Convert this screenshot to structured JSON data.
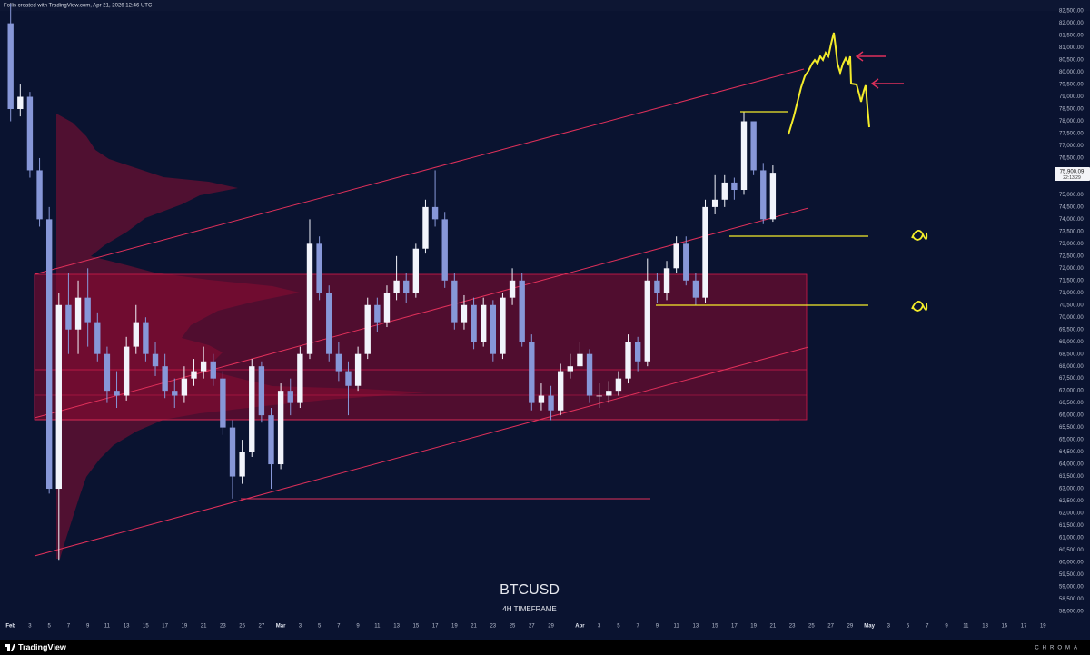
{
  "header": {
    "text": "Follis created with TradingView.com, Apr 21, 2026 12:46 UTC"
  },
  "footer": {
    "brand": "TradingView",
    "watermark": "CHROMA"
  },
  "price_tag": {
    "label": "75,900.09",
    "countdown": "22:13:29"
  },
  "chart_data": {
    "type": "candlestick",
    "title": "BTCUSD",
    "subtitle": "4H TIMEFRAME",
    "up_color": "#f2f4fb",
    "down_color": "#8797d8",
    "grid": false,
    "x": [
      0,
      1,
      2,
      3,
      4,
      5,
      6,
      7,
      8,
      9,
      10,
      11,
      12,
      13,
      14,
      15,
      16,
      17,
      18,
      19,
      20,
      21,
      22,
      23,
      24,
      25,
      26,
      27,
      28,
      29,
      30,
      31,
      32,
      33,
      34,
      35,
      36,
      37,
      38,
      39,
      40,
      41,
      42,
      43,
      44,
      45,
      46,
      47,
      48,
      49,
      50,
      51,
      52,
      53,
      54,
      55,
      56,
      57,
      58,
      59,
      60,
      61,
      62,
      63,
      64,
      65,
      66,
      67,
      68,
      69,
      70,
      71,
      72,
      73,
      74,
      75,
      76,
      77,
      78,
      79
    ],
    "open": [
      82000,
      78500,
      79000,
      76000,
      74000,
      63000,
      70500,
      69500,
      70800,
      69800,
      68500,
      67000,
      66800,
      68800,
      69800,
      68500,
      68000,
      67000,
      66800,
      67500,
      67800,
      68200,
      67500,
      65500,
      63500,
      64500,
      68000,
      66000,
      64000,
      67000,
      66500,
      68500,
      73000,
      71000,
      68500,
      67800,
      67200,
      68500,
      70500,
      69800,
      71000,
      71500,
      71000,
      72800,
      74500,
      74000,
      71500,
      69800,
      70500,
      69000,
      70500,
      68500,
      70800,
      71500,
      69000,
      66500,
      66800,
      66200,
      67800,
      68000,
      68500,
      66800,
      66800,
      67000,
      67500,
      69000,
      68200,
      71500,
      71000,
      72000,
      73000,
      71500,
      70800,
      74500,
      74800,
      75500,
      75200,
      78000,
      76000,
      74000
    ],
    "high": [
      82800,
      79500,
      79200,
      76500,
      74500,
      71000,
      71800,
      71500,
      72000,
      70200,
      68800,
      67800,
      69200,
      70500,
      70000,
      69000,
      68500,
      67500,
      68000,
      68300,
      68800,
      68500,
      67800,
      65800,
      65000,
      68300,
      68200,
      66300,
      67300,
      67500,
      68800,
      74000,
      73300,
      71300,
      69000,
      68200,
      68800,
      70800,
      70800,
      71300,
      72500,
      71800,
      73000,
      74800,
      76000,
      74300,
      71800,
      70900,
      70800,
      70800,
      70700,
      71000,
      72000,
      71800,
      69300,
      67300,
      67200,
      68100,
      68500,
      69000,
      68700,
      67300,
      67400,
      67800,
      69300,
      69200,
      72400,
      71800,
      72300,
      73300,
      73300,
      71800,
      74800,
      75800,
      75800,
      75700,
      78400,
      78000,
      76300,
      76200
    ],
    "low": [
      78000,
      78200,
      75700,
      73700,
      62800,
      60100,
      68500,
      68500,
      68800,
      68200,
      66500,
      66300,
      66600,
      68500,
      68200,
      67600,
      66700,
      66300,
      66500,
      67200,
      67500,
      67200,
      65200,
      62600,
      63200,
      64300,
      65700,
      63000,
      63800,
      66000,
      66300,
      68300,
      70700,
      68200,
      67400,
      66000,
      67000,
      68300,
      69400,
      69600,
      70700,
      70600,
      70800,
      72600,
      73700,
      71200,
      69500,
      69500,
      68700,
      68800,
      68200,
      68300,
      70500,
      68800,
      66200,
      66200,
      65800,
      66000,
      67500,
      68000,
      66500,
      66300,
      66500,
      66800,
      67300,
      67800,
      68000,
      70600,
      70700,
      71800,
      71300,
      70500,
      70600,
      74200,
      74500,
      74800,
      75000,
      75800,
      73800,
      73900
    ],
    "close": [
      78500,
      79000,
      76000,
      74000,
      63000,
      70500,
      69500,
      70800,
      69800,
      68500,
      67000,
      66800,
      68800,
      69800,
      68500,
      68000,
      67000,
      66800,
      67500,
      67800,
      68200,
      67500,
      65500,
      63500,
      64500,
      68000,
      66000,
      64000,
      67000,
      66500,
      68500,
      73000,
      71000,
      68500,
      67800,
      67200,
      68500,
      70500,
      69800,
      71000,
      71500,
      71000,
      72800,
      74500,
      74000,
      71500,
      69800,
      70500,
      69000,
      70500,
      68500,
      70800,
      71500,
      69000,
      66500,
      66800,
      66200,
      67800,
      68000,
      68500,
      66800,
      66800,
      67000,
      67500,
      69000,
      68200,
      71500,
      71000,
      72000,
      73000,
      71500,
      70800,
      74500,
      74800,
      75500,
      75200,
      78000,
      76000,
      74000,
      75900.09
    ],
    "xlim": [
      -1.1,
      108.1
    ],
    "xticks": [
      {
        "value": 0,
        "label": "Feb"
      },
      {
        "value": 2,
        "label": "3"
      },
      {
        "value": 4,
        "label": "5"
      },
      {
        "value": 6,
        "label": "7"
      },
      {
        "value": 8,
        "label": "9"
      },
      {
        "value": 10,
        "label": "11"
      },
      {
        "value": 12,
        "label": "13"
      },
      {
        "value": 14,
        "label": "15"
      },
      {
        "value": 16,
        "label": "17"
      },
      {
        "value": 18,
        "label": "19"
      },
      {
        "value": 20,
        "label": "21"
      },
      {
        "value": 22,
        "label": "23"
      },
      {
        "value": 24,
        "label": "25"
      },
      {
        "value": 26,
        "label": "27"
      },
      {
        "value": 28,
        "label": "Mar"
      },
      {
        "value": 30,
        "label": "3"
      },
      {
        "value": 32,
        "label": "5"
      },
      {
        "value": 34,
        "label": "7"
      },
      {
        "value": 36,
        "label": "9"
      },
      {
        "value": 38,
        "label": "11"
      },
      {
        "value": 40,
        "label": "13"
      },
      {
        "value": 42,
        "label": "15"
      },
      {
        "value": 44,
        "label": "17"
      },
      {
        "value": 46,
        "label": "19"
      },
      {
        "value": 48,
        "label": "21"
      },
      {
        "value": 50,
        "label": "23"
      },
      {
        "value": 52,
        "label": "25"
      },
      {
        "value": 54,
        "label": "27"
      },
      {
        "value": 56,
        "label": "29"
      },
      {
        "value": 59,
        "label": "Apr"
      },
      {
        "value": 61,
        "label": "3"
      },
      {
        "value": 63,
        "label": "5"
      },
      {
        "value": 65,
        "label": "7"
      },
      {
        "value": 67,
        "label": "9"
      },
      {
        "value": 69,
        "label": "11"
      },
      {
        "value": 71,
        "label": "13"
      },
      {
        "value": 73,
        "label": "15"
      },
      {
        "value": 75,
        "label": "17"
      },
      {
        "value": 77,
        "label": "19"
      },
      {
        "value": 79,
        "label": "21"
      },
      {
        "value": 81,
        "label": "23"
      },
      {
        "value": 83,
        "label": "25"
      },
      {
        "value": 85,
        "label": "27"
      },
      {
        "value": 87,
        "label": "29"
      },
      {
        "value": 89,
        "label": "May"
      },
      {
        "value": 91,
        "label": "3"
      },
      {
        "value": 93,
        "label": "5"
      },
      {
        "value": 95,
        "label": "7"
      },
      {
        "value": 97,
        "label": "9"
      },
      {
        "value": 99,
        "label": "11"
      },
      {
        "value": 101,
        "label": "13"
      },
      {
        "value": 103,
        "label": "15"
      },
      {
        "value": 105,
        "label": "17"
      },
      {
        "value": 107,
        "label": "19"
      }
    ],
    "ylim": [
      57550,
      82950
    ],
    "yticks": [
      {
        "value": 58000,
        "label": "58,000.00"
      },
      {
        "value": 58500,
        "label": "58,500.00"
      },
      {
        "value": 59000,
        "label": "59,000.00"
      },
      {
        "value": 59500,
        "label": "59,500.00"
      },
      {
        "value": 60000,
        "label": "60,000.00"
      },
      {
        "value": 60500,
        "label": "60,500.00"
      },
      {
        "value": 61000,
        "label": "61,000.00"
      },
      {
        "value": 61500,
        "label": "61,500.00"
      },
      {
        "value": 62000,
        "label": "62,000.00"
      },
      {
        "value": 62500,
        "label": "62,500.00"
      },
      {
        "value": 63000,
        "label": "63,000.00"
      },
      {
        "value": 63500,
        "label": "63,500.00"
      },
      {
        "value": 64000,
        "label": "64,000.00"
      },
      {
        "value": 64500,
        "label": "64,500.00"
      },
      {
        "value": 65000,
        "label": "65,000.00"
      },
      {
        "value": 65500,
        "label": "65,500.00"
      },
      {
        "value": 66000,
        "label": "66,000.00"
      },
      {
        "value": 66500,
        "label": "66,500.00"
      },
      {
        "value": 67000,
        "label": "67,000.00"
      },
      {
        "value": 67500,
        "label": "67,500.00"
      },
      {
        "value": 68000,
        "label": "68,000.00"
      },
      {
        "value": 68500,
        "label": "68,500.00"
      },
      {
        "value": 69000,
        "label": "69,000.00"
      },
      {
        "value": 69500,
        "label": "69,500.00"
      },
      {
        "value": 70000,
        "label": "70,000.00"
      },
      {
        "value": 70500,
        "label": "70,500.00"
      },
      {
        "value": 71000,
        "label": "71,000.00"
      },
      {
        "value": 71500,
        "label": "71,500.00"
      },
      {
        "value": 72000,
        "label": "72,000.00"
      },
      {
        "value": 72500,
        "label": "72,500.00"
      },
      {
        "value": 73000,
        "label": "73,000.00"
      },
      {
        "value": 73500,
        "label": "73,500.00"
      },
      {
        "value": 74000,
        "label": "74,000.00"
      },
      {
        "value": 74500,
        "label": "74,500.00"
      },
      {
        "value": 75000,
        "label": "75,000.00"
      },
      {
        "value": 76000,
        "label": "76,000.00"
      },
      {
        "value": 76500,
        "label": "76,500.00"
      },
      {
        "value": 77000,
        "label": "77,000.00"
      },
      {
        "value": 77500,
        "label": "77,500.00"
      },
      {
        "value": 78000,
        "label": "78,000.00"
      },
      {
        "value": 78500,
        "label": "78,500.00"
      },
      {
        "value": 79000,
        "label": "79,000.00"
      },
      {
        "value": 79500,
        "label": "79,500.00"
      },
      {
        "value": 80000,
        "label": "80,000.00"
      },
      {
        "value": 80500,
        "label": "80,500.00"
      },
      {
        "value": 81000,
        "label": "81,000.00"
      },
      {
        "value": 81500,
        "label": "81,500.00"
      },
      {
        "value": 82000,
        "label": "82,000.00"
      },
      {
        "value": 82500,
        "label": "82,500.00"
      }
    ]
  }
}
